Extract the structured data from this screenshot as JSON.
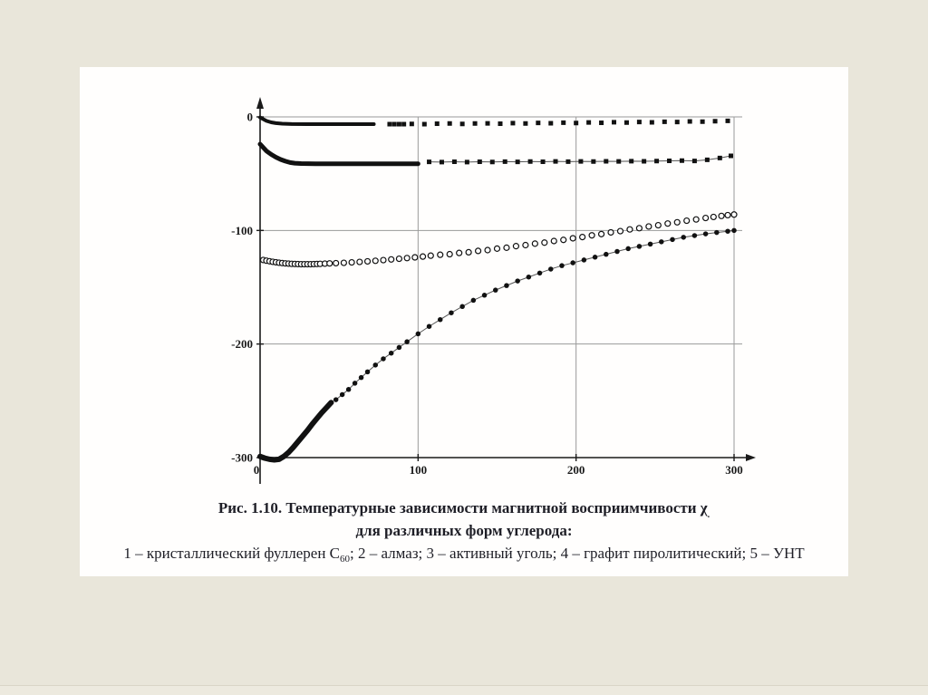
{
  "page": {
    "background_color": "#e9e6da",
    "panel_color": "#ffffff",
    "text_color": "#1e1e26"
  },
  "figure": {
    "caption": {
      "line1_pre": "Рис. 1.10. Температурные зависимости магнитной восприимчивости ",
      "chi": "χ",
      "chi_sub": ".",
      "line2": "для различных форм углерода:",
      "line3_pre": "1 – кристаллический фуллерен С",
      "line3_sub": "60",
      "line3_post": "; 2 – алмаз; 3 – активный уголь; 4 – графит пиролитический; 5 – УНТ"
    }
  },
  "chart_data": {
    "type": "scatter",
    "title": "Температурные зависимости магнитной восприимчивости χ для различных форм углерода",
    "xlabel": "",
    "ylabel": "",
    "xlim": [
      0,
      307
    ],
    "ylim": [
      -307,
      12
    ],
    "grid": true,
    "axis_color": "#1a1a1a",
    "grid_color": "#9a9a9a",
    "connector_color": "#555555",
    "series_color": "#111111",
    "x_ticks": [
      {
        "v": 0,
        "label": "0"
      },
      {
        "v": 100,
        "label": "100"
      },
      {
        "v": 200,
        "label": "200"
      },
      {
        "v": 300,
        "label": "300"
      }
    ],
    "y_ticks": [
      {
        "v": 0,
        "label": "0"
      },
      {
        "v": -100,
        "label": "-100"
      },
      {
        "v": -200,
        "label": "-200"
      },
      {
        "v": -300,
        "label": "-300"
      }
    ],
    "series": [
      {
        "name": "curve near 0 (filled squares, dense line then spaced points)",
        "marker": "square-filled",
        "marker_size": 5,
        "connect": false,
        "dense_width": 4,
        "dense_points": [
          [
            0,
            -0.5
          ],
          [
            2,
            -2.0
          ],
          [
            4,
            -3.5
          ],
          [
            7,
            -4.8
          ],
          [
            10,
            -5.5
          ],
          [
            14,
            -6.0
          ],
          [
            20,
            -6.3
          ],
          [
            30,
            -6.4
          ],
          [
            45,
            -6.4
          ],
          [
            60,
            -6.4
          ],
          [
            72,
            -6.4
          ]
        ],
        "points": [
          [
            82,
            -6.4
          ],
          [
            85,
            -6.4
          ],
          [
            88,
            -6.4
          ],
          [
            91,
            -6.4
          ],
          [
            96,
            -6.2
          ],
          [
            104,
            -6.4
          ],
          [
            112,
            -6.0
          ],
          [
            120,
            -5.8
          ],
          [
            128,
            -6.2
          ],
          [
            136,
            -5.8
          ],
          [
            144,
            -5.7
          ],
          [
            152,
            -6.0
          ],
          [
            160,
            -5.5
          ],
          [
            168,
            -5.8
          ],
          [
            176,
            -5.3
          ],
          [
            184,
            -5.6
          ],
          [
            192,
            -5.1
          ],
          [
            200,
            -5.4
          ],
          [
            208,
            -4.9
          ],
          [
            216,
            -5.2
          ],
          [
            224,
            -4.7
          ],
          [
            232,
            -5.0
          ],
          [
            240,
            -4.5
          ],
          [
            248,
            -4.8
          ],
          [
            256,
            -4.3
          ],
          [
            264,
            -4.5
          ],
          [
            272,
            -4.0
          ],
          [
            280,
            -4.2
          ],
          [
            288,
            -3.8
          ],
          [
            296,
            -3.5
          ]
        ]
      },
      {
        "name": "curve near -40 (filled squares, dense line then spaced points with thin connector)",
        "marker": "square-filled",
        "marker_size": 5,
        "connect": true,
        "connect_width": 1,
        "dense_width": 5,
        "dense_points": [
          [
            0,
            -24
          ],
          [
            2,
            -27
          ],
          [
            4,
            -30
          ],
          [
            7,
            -33
          ],
          [
            10,
            -35.5
          ],
          [
            13,
            -37.5
          ],
          [
            16,
            -39
          ],
          [
            19,
            -40.2
          ],
          [
            22,
            -40.8
          ],
          [
            26,
            -41.1
          ],
          [
            35,
            -41.3
          ],
          [
            50,
            -41.3
          ],
          [
            70,
            -41.3
          ],
          [
            85,
            -41.3
          ],
          [
            100,
            -41.3
          ]
        ],
        "points": [
          [
            107,
            -39.6
          ],
          [
            115,
            -39.8
          ],
          [
            123,
            -39.5
          ],
          [
            131,
            -39.8
          ],
          [
            139,
            -39.5
          ],
          [
            147,
            -39.7
          ],
          [
            155,
            -39.4
          ],
          [
            163,
            -39.6
          ],
          [
            171,
            -39.3
          ],
          [
            179,
            -39.5
          ],
          [
            187,
            -39.2
          ],
          [
            195,
            -39.4
          ],
          [
            203,
            -39.2
          ],
          [
            211,
            -39.3
          ],
          [
            219,
            -39.1
          ],
          [
            227,
            -39.2
          ],
          [
            235,
            -39.0
          ],
          [
            243,
            -39.1
          ],
          [
            251,
            -38.9
          ],
          [
            259,
            -38.7
          ],
          [
            267,
            -38.5
          ],
          [
            275,
            -38.8
          ],
          [
            283,
            -37.8
          ],
          [
            291,
            -36.2
          ],
          [
            298,
            -34.3
          ]
        ]
      },
      {
        "name": "rising curve from -127 to -86 (open circles)",
        "marker": "circle-open",
        "marker_size": 6,
        "connect": false,
        "dense_points": [],
        "points": [
          [
            2,
            -126.0
          ],
          [
            4,
            -126.6
          ],
          [
            6,
            -127.1
          ],
          [
            8,
            -127.6
          ],
          [
            10,
            -128.0
          ],
          [
            12,
            -128.4
          ],
          [
            14,
            -128.7
          ],
          [
            16,
            -129.0
          ],
          [
            18,
            -129.2
          ],
          [
            20,
            -129.4
          ],
          [
            22,
            -129.5
          ],
          [
            24,
            -129.6
          ],
          [
            26,
            -129.7
          ],
          [
            28,
            -129.7
          ],
          [
            30,
            -129.7
          ],
          [
            32,
            -129.7
          ],
          [
            34,
            -129.6
          ],
          [
            36,
            -129.5
          ],
          [
            38,
            -129.4
          ],
          [
            41,
            -129.2
          ],
          [
            44,
            -129.0
          ],
          [
            48,
            -128.8
          ],
          [
            53,
            -128.5
          ],
          [
            58,
            -128.1
          ],
          [
            63,
            -127.7
          ],
          [
            68,
            -127.2
          ],
          [
            73,
            -126.7
          ],
          [
            78,
            -126.1
          ],
          [
            83,
            -125.5
          ],
          [
            88,
            -124.9
          ],
          [
            93,
            -124.3
          ],
          [
            98,
            -123.7
          ],
          [
            103,
            -123.0
          ],
          [
            108,
            -122.2
          ],
          [
            114,
            -121.4
          ],
          [
            120,
            -120.9
          ],
          [
            126,
            -119.8
          ],
          [
            132,
            -119.2
          ],
          [
            138,
            -118.0
          ],
          [
            144,
            -117.3
          ],
          [
            150,
            -116.0
          ],
          [
            156,
            -115.2
          ],
          [
            162,
            -113.8
          ],
          [
            168,
            -112.9
          ],
          [
            174,
            -111.6
          ],
          [
            180,
            -110.7
          ],
          [
            186,
            -109.3
          ],
          [
            192,
            -108.3
          ],
          [
            198,
            -106.9
          ],
          [
            204,
            -105.8
          ],
          [
            210,
            -104.3
          ],
          [
            216,
            -103.2
          ],
          [
            222,
            -101.7
          ],
          [
            228,
            -100.6
          ],
          [
            234,
            -99.1
          ],
          [
            240,
            -98.0
          ],
          [
            246,
            -96.5
          ],
          [
            252,
            -95.4
          ],
          [
            258,
            -93.9
          ],
          [
            264,
            -92.8
          ],
          [
            270,
            -91.4
          ],
          [
            276,
            -90.3
          ],
          [
            282,
            -89.0
          ],
          [
            287,
            -88.1
          ],
          [
            292,
            -87.2
          ],
          [
            296,
            -86.5
          ],
          [
            300,
            -86.0
          ]
        ]
      },
      {
        "name": "rising curve from -300 to -100 (filled circles with thin connector)",
        "marker": "circle-filled",
        "marker_size": 5.5,
        "connect": true,
        "connect_width": 1,
        "dense_width": 6,
        "dense_points": [
          [
            0,
            -299
          ],
          [
            3,
            -300.5
          ],
          [
            6,
            -301.5
          ],
          [
            9,
            -302
          ],
          [
            12,
            -301.5
          ],
          [
            15,
            -299
          ],
          [
            18,
            -295.5
          ],
          [
            21,
            -291
          ],
          [
            24,
            -286
          ],
          [
            27,
            -281
          ],
          [
            30,
            -276
          ],
          [
            33,
            -270.5
          ],
          [
            36,
            -265.5
          ],
          [
            39,
            -260.5
          ],
          [
            42,
            -256
          ],
          [
            45,
            -251.5
          ]
        ],
        "points": [
          [
            48,
            -249
          ],
          [
            52,
            -244.5
          ],
          [
            56,
            -240
          ],
          [
            60,
            -234.5
          ],
          [
            64,
            -229.5
          ],
          [
            68,
            -224.5
          ],
          [
            73,
            -218.5
          ],
          [
            78,
            -213
          ],
          [
            83,
            -208
          ],
          [
            88,
            -203
          ],
          [
            93,
            -198
          ],
          [
            100,
            -191
          ],
          [
            107,
            -184.5
          ],
          [
            114,
            -178.5
          ],
          [
            121,
            -172.5
          ],
          [
            128,
            -167
          ],
          [
            135,
            -161.5
          ],
          [
            142,
            -157
          ],
          [
            149,
            -152.5
          ],
          [
            156,
            -148.5
          ],
          [
            163,
            -144.5
          ],
          [
            170,
            -141
          ],
          [
            177,
            -137.5
          ],
          [
            184,
            -134
          ],
          [
            191,
            -131
          ],
          [
            198,
            -128.5
          ],
          [
            205,
            -126
          ],
          [
            212,
            -123.5
          ],
          [
            219,
            -121
          ],
          [
            226,
            -118.5
          ],
          [
            233,
            -116
          ],
          [
            240,
            -114
          ],
          [
            247,
            -112
          ],
          [
            254,
            -110
          ],
          [
            261,
            -108
          ],
          [
            268,
            -106
          ],
          [
            275,
            -104.5
          ],
          [
            282,
            -103
          ],
          [
            289,
            -101.8
          ],
          [
            296,
            -100.7
          ],
          [
            300,
            -100
          ]
        ]
      }
    ]
  }
}
